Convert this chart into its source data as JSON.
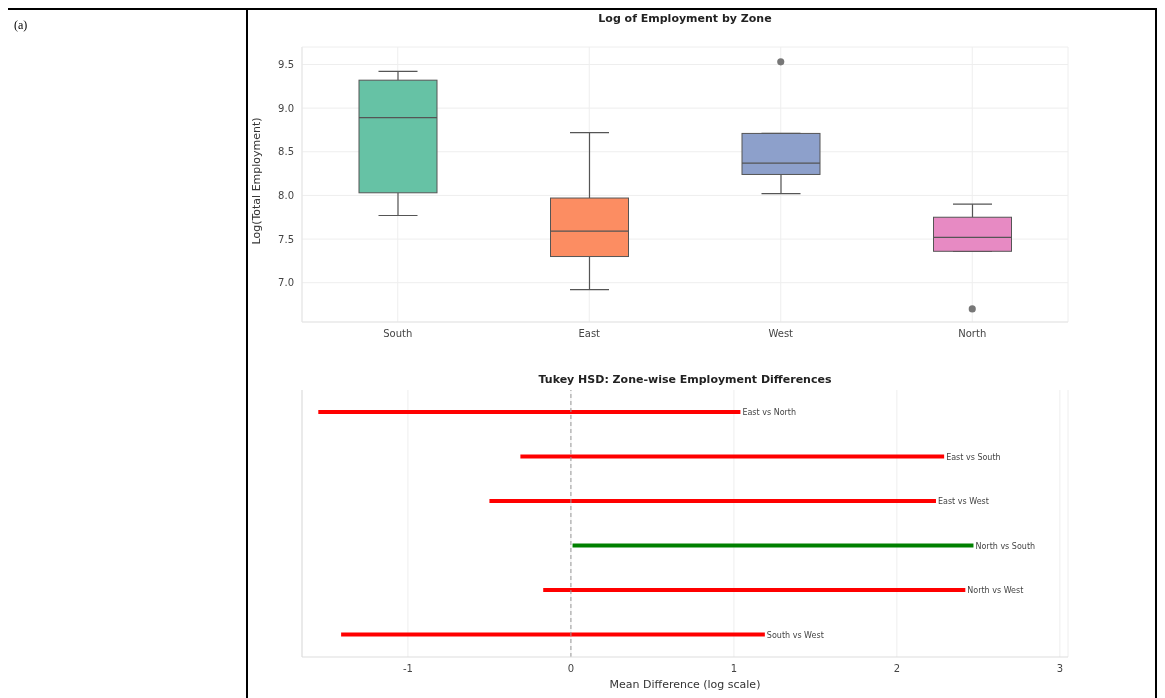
{
  "chart_data": [
    {
      "type": "box",
      "title": "Log of Employment by Zone",
      "ylabel": "Log(Total Employment)",
      "categories": [
        "South",
        "East",
        "West",
        "North"
      ],
      "colors": [
        "#66c2a5",
        "#fc8d62",
        "#8da0cb",
        "#e78ac3"
      ],
      "boxes": [
        {
          "low": 7.77,
          "q1": 8.03,
          "median": 8.89,
          "q3": 9.32,
          "high": 9.42
        },
        {
          "low": 6.92,
          "q1": 7.3,
          "median": 7.59,
          "q3": 7.97,
          "high": 8.72
        },
        {
          "low": 8.02,
          "q1": 8.24,
          "median": 8.37,
          "q3": 8.71,
          "high": 8.71,
          "outliers": [
            9.53
          ]
        },
        {
          "low": 7.36,
          "q1": 7.36,
          "median": 7.52,
          "q3": 7.75,
          "high": 7.9,
          "outliers": [
            6.7
          ]
        }
      ],
      "ylim": [
        6.55,
        9.7
      ],
      "yticks": [
        {
          "value": 7,
          "label": "7.0"
        },
        7.5,
        {
          "value": 8,
          "label": "8.0"
        },
        8.5,
        {
          "value": 9,
          "label": "9.0"
        },
        9.5
      ],
      "grid": true,
      "annotations": [
        "(a)"
      ]
    },
    {
      "type": "bar",
      "orientation": "horizontal",
      "title": "Tukey HSD: Zone-wise Employment Differences",
      "xlabel": "Mean Difference (log scale)",
      "categories": [
        null,
        null,
        null,
        null,
        null,
        null
      ],
      "base": [
        -1.55,
        -0.31,
        -0.5,
        0.01,
        -0.17,
        -1.41
      ],
      "values": [
        2.59,
        2.6,
        2.74,
        2.46,
        2.59,
        2.6
      ],
      "colors": [
        "#ff0000",
        "#ff0000",
        "#ff0000",
        "#008000",
        "#ff0000",
        "#ff0000"
      ],
      "xlim": [
        -1.65,
        3.05
      ],
      "xticks": [
        -1,
        0,
        1,
        2,
        3
      ],
      "grid": "x",
      "tick_labels": "x",
      "ref_lines": [
        {
          "axis": "x",
          "value": 0,
          "color": "#999999",
          "line_style": "dashed"
        }
      ],
      "annotations": [
        {
          "text": "East vs North",
          "x": 1.04
        },
        {
          "text": "East vs South",
          "x": 2.29
        },
        {
          "text": "East vs West",
          "x": 2.24
        },
        {
          "text": "North vs South",
          "x": 2.47
        },
        {
          "text": "North vs West",
          "x": 2.42
        },
        {
          "text": "South vs West",
          "x": 1.19
        }
      ]
    }
  ]
}
